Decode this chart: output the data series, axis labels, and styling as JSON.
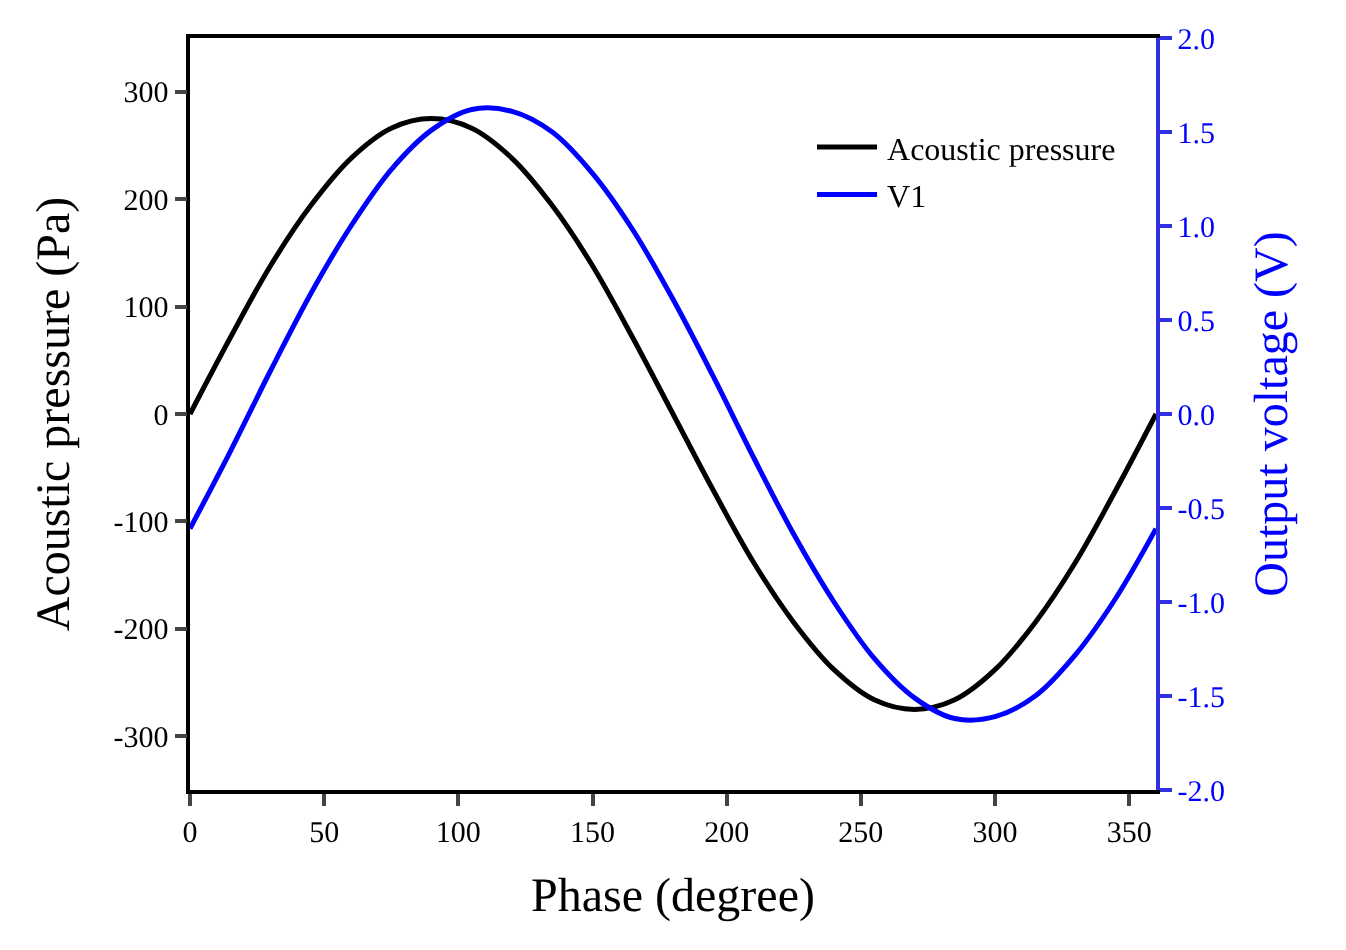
{
  "chart_data": {
    "type": "line",
    "xlabel": "Phase (degree)",
    "ylabel": "Acoustic pressure (Pa)",
    "y2label": "Output voltage (V)",
    "x": [
      0,
      15,
      30,
      45,
      60,
      75,
      90,
      105,
      120,
      135,
      150,
      165,
      180,
      195,
      210,
      225,
      240,
      255,
      270,
      285,
      300,
      315,
      330,
      345,
      360
    ],
    "series": [
      {
        "name": "Acoustic pressure",
        "color": "#000000",
        "values": [
          0,
          71,
          138,
          194,
          238,
          266,
          275,
          266,
          238,
          194,
          138,
          71,
          0,
          -71,
          -138,
          -194,
          -238,
          -266,
          -275,
          -266,
          -238,
          -194,
          -138,
          -71,
          0
        ]
      },
      {
        "name": "V1",
        "color": "#0000ff",
        "axis": "y2",
        "values": [
          -0.61,
          -0.2,
          0.23,
          0.64,
          1.0,
          1.3,
          1.51,
          1.62,
          1.61,
          1.5,
          1.28,
          0.98,
          0.61,
          0.2,
          -0.23,
          -0.64,
          -1.0,
          -1.3,
          -1.51,
          -1.62,
          -1.61,
          -1.5,
          -1.28,
          -0.98,
          -0.61
        ]
      }
    ],
    "xlim": [
      0,
      360
    ],
    "xticks": [
      0,
      50,
      100,
      150,
      200,
      250,
      300,
      350
    ],
    "ylim": [
      -350,
      350
    ],
    "yticks": [
      -300,
      -200,
      -100,
      0,
      100,
      200,
      300
    ],
    "y2lim": [
      -2,
      2
    ],
    "y2ticks": [
      {
        "value": -2,
        "label": "-2.0"
      },
      {
        "value": -1.5,
        "label": "-1.5"
      },
      {
        "value": -1,
        "label": "-1.0"
      },
      {
        "value": -0.5,
        "label": "-0.5"
      },
      {
        "value": 0,
        "label": "0.0"
      },
      {
        "value": 0.5,
        "label": "0.5"
      },
      {
        "value": 1,
        "label": "1.0"
      },
      {
        "value": 1.5,
        "label": "1.5"
      },
      {
        "value": 2,
        "label": "2.0"
      }
    ],
    "legend": "top right",
    "line_style": "solid",
    "marker": "none"
  }
}
